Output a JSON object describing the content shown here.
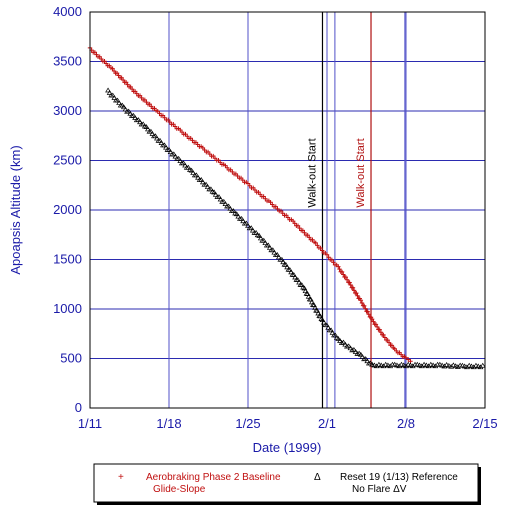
{
  "chart_data": {
    "type": "scatter",
    "xlabel": "Date (1999)",
    "ylabel": "Apoapsis Altitude (km)",
    "xlim": [
      0,
      35
    ],
    "ylim": [
      0,
      4000
    ],
    "x_ticks": [
      {
        "value": 0,
        "label": "1/11"
      },
      {
        "value": 7,
        "label": "1/18"
      },
      {
        "value": 14,
        "label": "1/25"
      },
      {
        "value": 21,
        "label": "2/1"
      },
      {
        "value": 28,
        "label": "2/8"
      },
      {
        "value": 35,
        "label": "2/15"
      }
    ],
    "y_ticks": [
      0,
      500,
      1000,
      1500,
      2000,
      2500,
      3000,
      3500,
      4000
    ],
    "grid": true,
    "vertical_markers": [
      {
        "x": 20.6,
        "label": "Walk-out Start",
        "color": "#000000"
      },
      {
        "x": 24.9,
        "label": "Walk-out Start",
        "color": "#b01010"
      }
    ],
    "extra_gridlines_x": [
      21.7,
      27.9
    ],
    "series": [
      {
        "name": "Aerobraking Phase 2 Baseline Glide-Slope",
        "marker": "+",
        "color": "#c01010",
        "points": [
          [
            0,
            3630
          ],
          [
            2,
            3420
          ],
          [
            4,
            3190
          ],
          [
            6,
            2990
          ],
          [
            8,
            2800
          ],
          [
            10,
            2620
          ],
          [
            12,
            2440
          ],
          [
            14,
            2260
          ],
          [
            16,
            2070
          ],
          [
            18,
            1880
          ],
          [
            20,
            1660
          ],
          [
            21,
            1540
          ],
          [
            22,
            1420
          ],
          [
            23,
            1260
          ],
          [
            24,
            1080
          ],
          [
            25,
            890
          ],
          [
            26,
            730
          ],
          [
            27,
            590
          ],
          [
            28,
            500
          ],
          [
            28.6,
            470
          ]
        ]
      },
      {
        "name": "Reset 19 (1/13) Reference No Flare ΔV",
        "marker": "triangle",
        "color": "#000000",
        "points": [
          [
            1.6,
            3200
          ],
          [
            3,
            3030
          ],
          [
            5,
            2830
          ],
          [
            7,
            2600
          ],
          [
            9,
            2390
          ],
          [
            11,
            2170
          ],
          [
            13,
            1950
          ],
          [
            15,
            1730
          ],
          [
            17,
            1490
          ],
          [
            19,
            1200
          ],
          [
            20.6,
            880
          ],
          [
            22,
            690
          ],
          [
            24,
            530
          ],
          [
            25,
            430
          ],
          [
            27,
            430
          ],
          [
            29,
            430
          ],
          [
            31,
            430
          ],
          [
            33,
            420
          ],
          [
            35,
            420
          ]
        ]
      }
    ],
    "legend": {
      "placement": "bottom",
      "entries": [
        {
          "symbol": "+",
          "line1": "Aerobraking Phase 2 Baseline",
          "line2": "Glide-Slope",
          "color": "#c01010"
        },
        {
          "symbol": "Δ",
          "line1": "Reset 19 (1/13) Reference",
          "line2": "No Flare ΔV",
          "color": "#000000"
        }
      ]
    }
  }
}
